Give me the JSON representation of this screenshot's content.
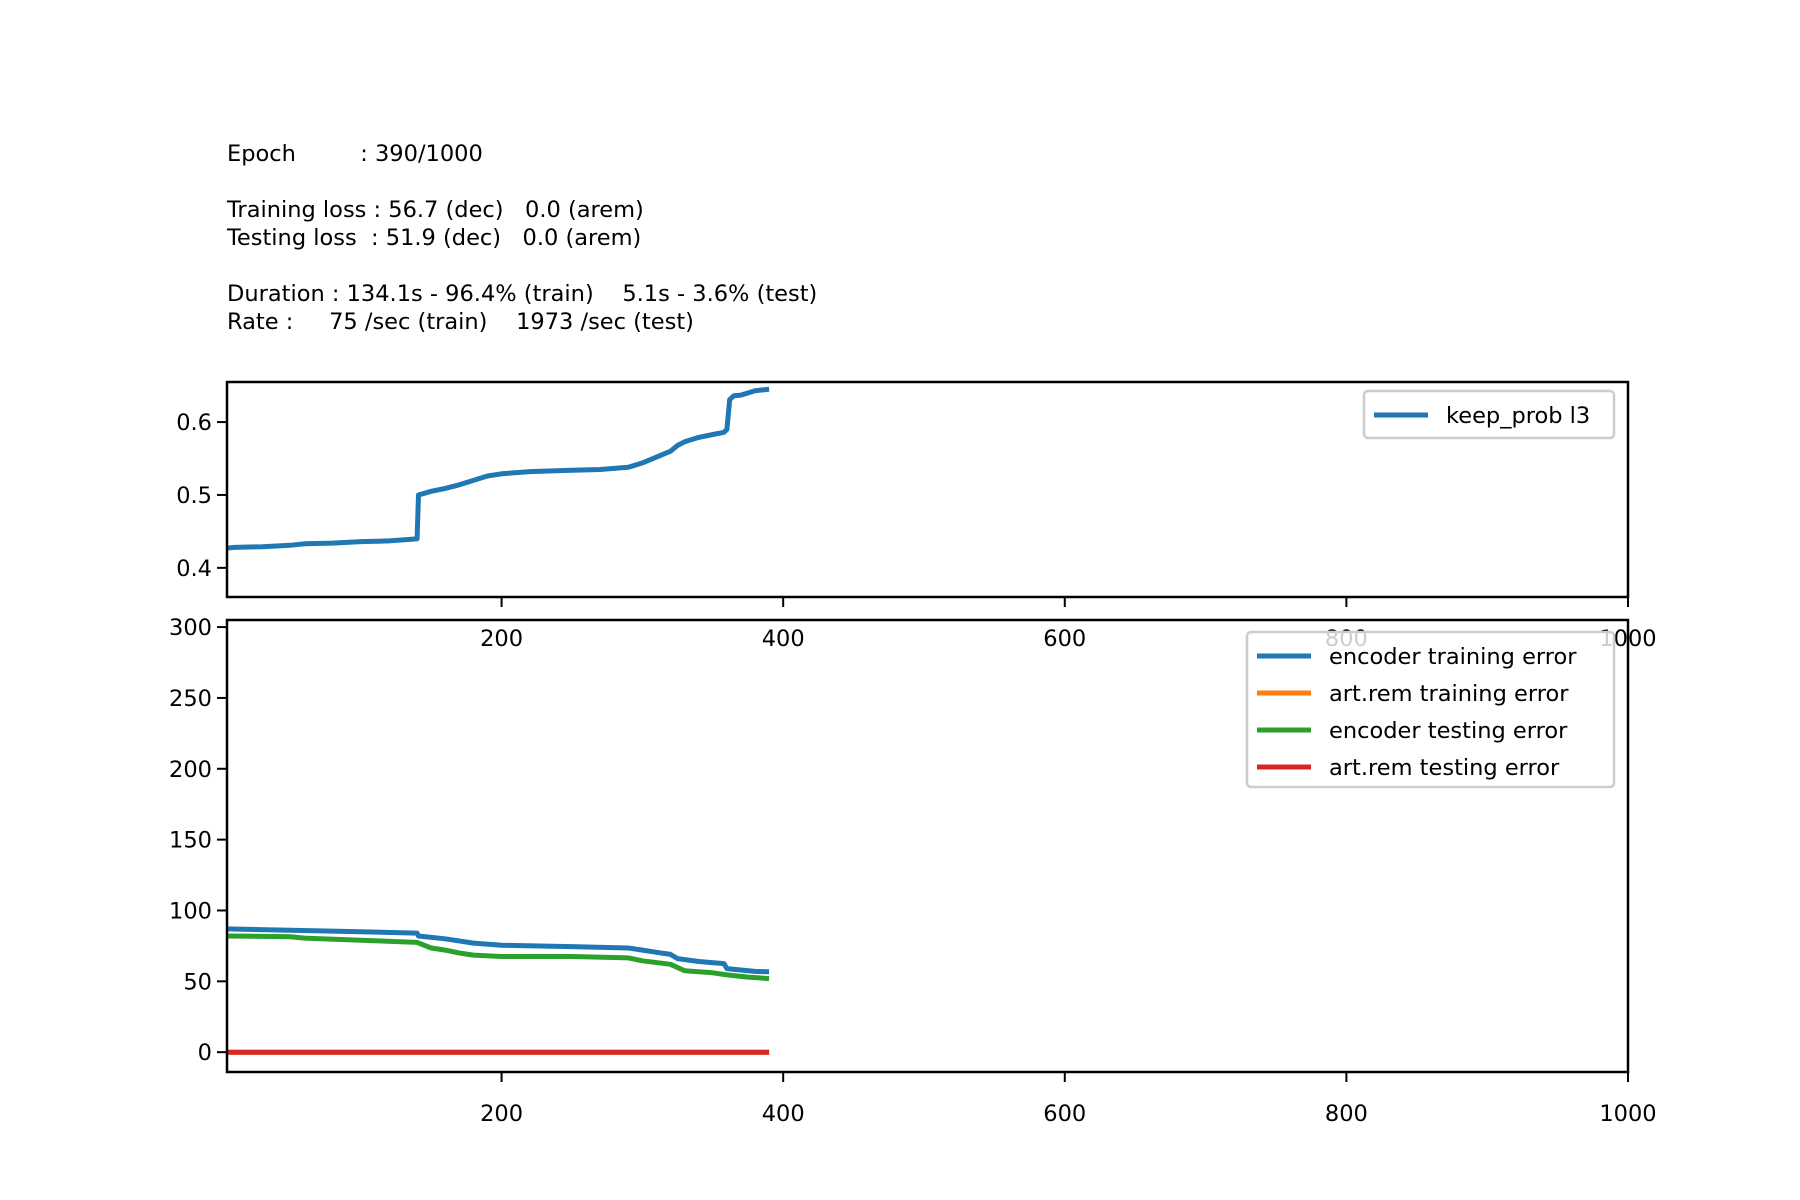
{
  "info": {
    "epoch": "Epoch         : 390/1000",
    "training_loss": "Training loss : 56.7 (dec)   0.0 (arem)",
    "testing_loss": "Testing loss  : 51.9 (dec)   0.0 (arem)",
    "duration": "Duration : 134.1s - 96.4% (train)    5.1s - 3.6% (test)",
    "rate": "Rate :     75 /sec (train)    1973 /sec (test)"
  },
  "chart_data": [
    {
      "type": "line",
      "xlim": [
        5,
        1000
      ],
      "ylim": [
        0.36,
        0.655
      ],
      "x_ticks": [
        200,
        400,
        600,
        800,
        1000
      ],
      "y_ticks": [
        0.4,
        0.5,
        0.6
      ],
      "y_tick_labels": [
        "0.4",
        "0.5",
        "0.6"
      ],
      "legend_position": "top-right",
      "grid": false,
      "series": [
        {
          "name": "keep_prob l3",
          "color": "#1f77b4",
          "points": [
            [
              5,
              0.427
            ],
            [
              10,
              0.428
            ],
            [
              30,
              0.429
            ],
            [
              50,
              0.431
            ],
            [
              60,
              0.433
            ],
            [
              80,
              0.434
            ],
            [
              100,
              0.436
            ],
            [
              120,
              0.437
            ],
            [
              135,
              0.439
            ],
            [
              140,
              0.44
            ],
            [
              141,
              0.5
            ],
            [
              150,
              0.505
            ],
            [
              160,
              0.509
            ],
            [
              170,
              0.514
            ],
            [
              180,
              0.52
            ],
            [
              190,
              0.526
            ],
            [
              200,
              0.529
            ],
            [
              220,
              0.532
            ],
            [
              250,
              0.534
            ],
            [
              270,
              0.535
            ],
            [
              290,
              0.538
            ],
            [
              300,
              0.544
            ],
            [
              310,
              0.552
            ],
            [
              320,
              0.56
            ],
            [
              325,
              0.568
            ],
            [
              330,
              0.573
            ],
            [
              340,
              0.579
            ],
            [
              350,
              0.583
            ],
            [
              358,
              0.586
            ],
            [
              360,
              0.59
            ],
            [
              362,
              0.631
            ],
            [
              365,
              0.636
            ],
            [
              370,
              0.637
            ],
            [
              380,
              0.643
            ],
            [
              390,
              0.645
            ]
          ]
        }
      ]
    },
    {
      "type": "line",
      "xlim": [
        5,
        1000
      ],
      "ylim": [
        -14,
        305
      ],
      "x_ticks": [
        200,
        400,
        600,
        800,
        1000
      ],
      "y_ticks": [
        0,
        50,
        100,
        150,
        200,
        250,
        300
      ],
      "y_tick_labels": [
        "0",
        "50",
        "100",
        "150",
        "200",
        "250",
        "300"
      ],
      "legend_position": "top-right",
      "grid": false,
      "series": [
        {
          "name": "encoder training error",
          "color": "#1f77b4",
          "points": [
            [
              5,
              87
            ],
            [
              50,
              86
            ],
            [
              100,
              85
            ],
            [
              140,
              84
            ],
            [
              141,
              82
            ],
            [
              160,
              80
            ],
            [
              180,
              77
            ],
            [
              200,
              75.5
            ],
            [
              250,
              74.5
            ],
            [
              290,
              73.5
            ],
            [
              300,
              72
            ],
            [
              310,
              70.5
            ],
            [
              320,
              69
            ],
            [
              325,
              66
            ],
            [
              340,
              64
            ],
            [
              358,
              62.5
            ],
            [
              360,
              59
            ],
            [
              370,
              58
            ],
            [
              380,
              57
            ],
            [
              390,
              56.7
            ]
          ]
        },
        {
          "name": "art.rem training error",
          "color": "#ff7f0e",
          "points": [
            [
              5,
              0
            ],
            [
              390,
              0
            ]
          ]
        },
        {
          "name": "encoder testing error",
          "color": "#2ca02c",
          "points": [
            [
              5,
              82
            ],
            [
              50,
              81.5
            ],
            [
              60,
              80.5
            ],
            [
              100,
              79
            ],
            [
              140,
              77.5
            ],
            [
              150,
              73.5
            ],
            [
              160,
              72
            ],
            [
              170,
              70
            ],
            [
              180,
              68.5
            ],
            [
              200,
              67.5
            ],
            [
              250,
              67.5
            ],
            [
              290,
              66.5
            ],
            [
              300,
              64.5
            ],
            [
              320,
              62
            ],
            [
              330,
              57.5
            ],
            [
              350,
              56
            ],
            [
              360,
              54.5
            ],
            [
              375,
              53
            ],
            [
              390,
              51.9
            ]
          ]
        },
        {
          "name": "art.rem testing error",
          "color": "#d62728",
          "points": [
            [
              5,
              0
            ],
            [
              390,
              0
            ]
          ]
        }
      ]
    }
  ]
}
